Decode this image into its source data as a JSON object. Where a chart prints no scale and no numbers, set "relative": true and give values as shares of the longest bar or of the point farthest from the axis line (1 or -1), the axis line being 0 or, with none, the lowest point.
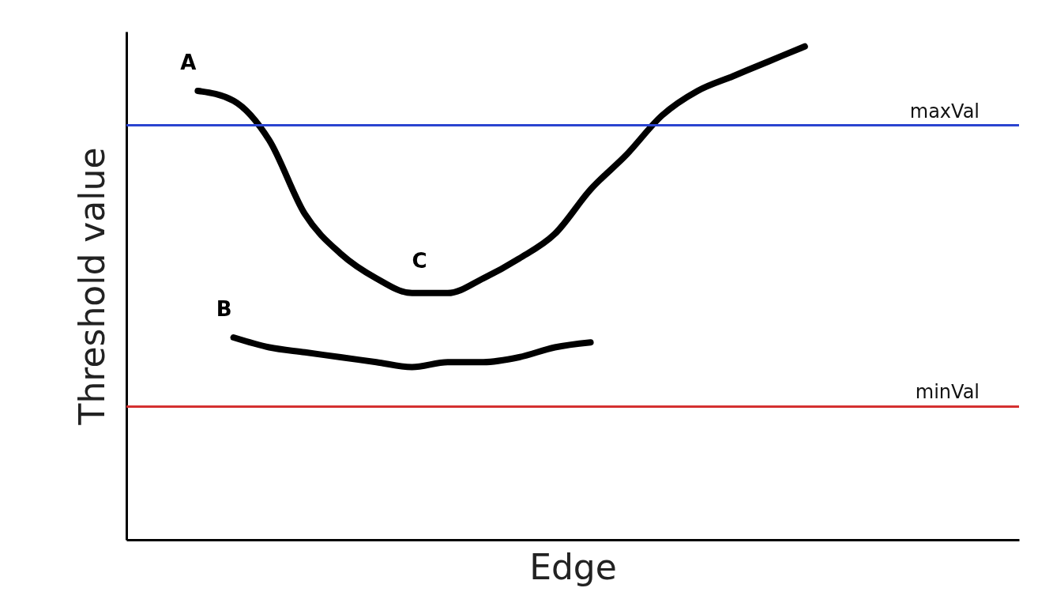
{
  "chart_data": {
    "type": "line",
    "relative": true,
    "xlabel": "Edge",
    "ylabel": "Threshold value",
    "tick_labels": false,
    "line_style": "solid",
    "categories": [
      null,
      null,
      null,
      null,
      null,
      null,
      null,
      null,
      null,
      null,
      null,
      null,
      null,
      null,
      null,
      null,
      null,
      null,
      null,
      null,
      null,
      null,
      null,
      null,
      null,
      null
    ],
    "series": [
      {
        "name": "A",
        "color": "#000000",
        "values": [
          null,
          null,
          0.91,
          0.89,
          0.81,
          0.66,
          0.58,
          0.53,
          0.5,
          0.5,
          0.53,
          0.57,
          0.62,
          0.71,
          0.78,
          0.86,
          0.91,
          0.94,
          0.97,
          1.0,
          null,
          null,
          null,
          null,
          null,
          null
        ]
      },
      {
        "name": "B",
        "color": "#000000",
        "values": [
          null,
          null,
          null,
          0.41,
          0.39,
          0.38,
          0.37,
          0.36,
          0.35,
          0.36,
          0.36,
          0.37,
          0.39,
          0.4,
          null,
          null,
          null,
          null,
          null,
          null,
          null,
          null,
          null,
          null,
          null,
          null
        ]
      }
    ],
    "ref_lines": [
      {
        "axis": "y",
        "value": 0.84,
        "label": "maxVal",
        "color": "#2b44d0"
      },
      {
        "axis": "y",
        "value": 0.27,
        "label": "minVal",
        "color": "#d43030"
      }
    ],
    "annotations": [
      "C"
    ]
  }
}
